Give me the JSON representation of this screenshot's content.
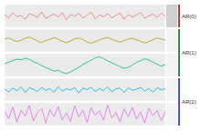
{
  "chart_data": [
    {
      "type": "line",
      "title": "AR(0)",
      "color": "#B2403A",
      "grid": true,
      "tick_labels": false,
      "x": [
        1,
        2,
        3,
        4,
        5,
        6,
        7,
        8,
        9,
        10,
        11,
        12,
        13,
        14,
        15,
        16,
        17,
        18,
        19,
        20,
        21,
        22,
        23,
        24,
        25,
        26,
        27,
        28,
        29,
        30,
        31,
        32,
        33,
        34,
        35,
        36,
        37,
        38,
        39,
        40
      ],
      "xlim": [
        1,
        40
      ],
      "xticks": [
        1,
        10,
        20,
        30,
        40
      ],
      "ylim": [
        -3,
        3
      ],
      "yticks": [
        -3,
        0,
        3
      ],
      "series": [
        {
          "color": "#F8766D",
          "values": [
            0.3,
            -0.5,
            0.8,
            -0.2,
            0.1,
            -0.9,
            0.6,
            0.2,
            -0.4,
            1.1,
            -0.7,
            0.0,
            0.5,
            -0.3,
            0.9,
            -1.0,
            0.4,
            -0.1,
            0.7,
            -0.6,
            0.2,
            1.0,
            -0.8,
            0.3,
            -0.2,
            0.6,
            -0.5,
            0.1,
            0.8,
            -0.9,
            0.4,
            -0.3,
            0.2,
            0.9,
            -0.6,
            0.0,
            0.5,
            -0.4,
            0.7,
            -0.1
          ]
        }
      ]
    },
    {
      "type": "line",
      "title": "AR(1)",
      "color": "#2E8B57",
      "grid": true,
      "tick_labels": false,
      "x": [
        1,
        2,
        3,
        4,
        5,
        6,
        7,
        8,
        9,
        10,
        11,
        12,
        13,
        14,
        15,
        16,
        17,
        18,
        19,
        20,
        21,
        22,
        23,
        24,
        25,
        26,
        27,
        28,
        29,
        30,
        31,
        32,
        33,
        34,
        35,
        36,
        37,
        38,
        39,
        40
      ],
      "xlim": [
        1,
        40
      ],
      "xticks": [
        1,
        10,
        20,
        30,
        40
      ],
      "ylim": [
        -4,
        4
      ],
      "yticks": [
        -4,
        -2,
        0,
        2,
        4
      ],
      "series": [
        {
          "color": "#A3A500",
          "values": [
            0.5,
            0.9,
            0.2,
            -0.4,
            0.1,
            0.8,
            1.2,
            0.6,
            -0.2,
            -0.7,
            0.0,
            0.4,
            1.0,
            0.5,
            -0.3,
            -0.8,
            -0.2,
            0.6,
            0.9,
            0.3,
            -0.5,
            -1.0,
            -0.4,
            0.2,
            0.7,
            1.1,
            0.4,
            -0.1,
            -0.6,
            0.0,
            0.5,
            0.8,
            0.2,
            -0.3,
            -0.9,
            -0.4,
            0.3,
            0.9,
            0.5,
            0.1
          ]
        },
        {
          "color": "#00BF7D",
          "values": [
            0.5,
            1.0,
            1.6,
            2.1,
            1.8,
            2.4,
            2.0,
            1.2,
            0.6,
            -0.2,
            -0.9,
            -1.5,
            -2.2,
            -1.8,
            -2.6,
            -3.0,
            -2.4,
            -1.6,
            -0.8,
            0.2,
            1.0,
            1.7,
            2.5,
            2.9,
            2.3,
            1.5,
            0.8,
            0.1,
            -0.6,
            -1.2,
            -0.8,
            0.0,
            0.9,
            1.6,
            2.2,
            1.8,
            1.0,
            0.3,
            -0.4,
            0.2
          ]
        }
      ]
    },
    {
      "type": "line",
      "title": "AR(2)",
      "color": "#5050D0",
      "grid": true,
      "tick_labels": false,
      "x": [
        1,
        2,
        3,
        4,
        5,
        6,
        7,
        8,
        9,
        10,
        11,
        12,
        13,
        14,
        15,
        16,
        17,
        18,
        19,
        20,
        21,
        22,
        23,
        24,
        25,
        26,
        27,
        28,
        29,
        30,
        31,
        32,
        33,
        34,
        35,
        36,
        37,
        38,
        39,
        40
      ],
      "xlim": [
        1,
        40
      ],
      "xticks": [
        1,
        10,
        20,
        30,
        40
      ],
      "ylim": [
        -3,
        3
      ],
      "yticks": [
        -3,
        0,
        3
      ],
      "series": [
        {
          "color": "#00B0F6",
          "values": [
            0.2,
            -0.6,
            0.4,
            -0.3,
            0.7,
            -0.8,
            0.5,
            0.1,
            -0.5,
            0.6,
            -0.2,
            0.3,
            -0.7,
            0.8,
            -0.4,
            0.2,
            -0.1,
            0.5,
            -0.9,
            0.4,
            0.0,
            0.6,
            -0.5,
            0.3,
            -0.3,
            0.7,
            -0.6,
            0.2,
            0.4,
            -0.8,
            0.5,
            -0.2,
            0.1,
            0.6,
            -0.4,
            0.3,
            -0.7,
            0.5,
            -0.1,
            0.2
          ]
        },
        {
          "color": "#E76BF3",
          "values": [
            0.8,
            -1.2,
            1.9,
            -2.1,
            1.0,
            -0.5,
            2.3,
            -1.8,
            0.4,
            1.5,
            -2.4,
            1.2,
            -0.6,
            2.0,
            -1.5,
            0.3,
            -1.9,
            2.2,
            -0.8,
            1.1,
            -2.2,
            1.7,
            -0.3,
            0.9,
            -1.6,
            2.4,
            -1.0,
            0.5,
            -2.0,
            1.4,
            -0.7,
            1.8,
            -1.3,
            0.6,
            -2.3,
            1.6,
            -0.4,
            1.0,
            -1.7,
            0.7
          ]
        }
      ]
    }
  ]
}
